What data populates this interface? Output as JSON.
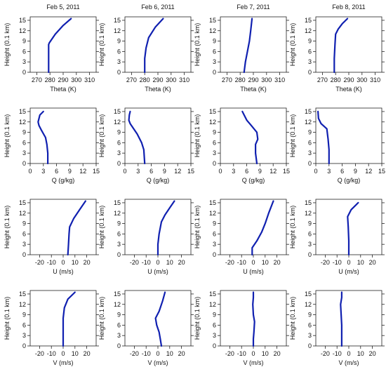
{
  "figure": {
    "column_titles": [
      "Feb 5, 2011",
      "Feb 6, 2011",
      "Feb 7, 2011",
      "Feb 8, 2011"
    ],
    "line_color": "#1020b0",
    "y_axis": {
      "label": "Height (0.1 km)",
      "range": [
        0,
        16
      ],
      "ticks": [
        0,
        3,
        6,
        9,
        12,
        15
      ]
    }
  },
  "chart_data": [
    {
      "type": "line",
      "variable": "Theta",
      "xlabel": "Theta (K)",
      "xlim": [
        265,
        315
      ],
      "xticks": [
        270,
        280,
        290,
        300,
        310
      ],
      "ylabel": "Height (0.1 km)",
      "ylim": [
        0,
        16
      ],
      "panels": [
        {
          "date": "Feb 5, 2011",
          "x": [
            279,
            279,
            279,
            279.5,
            284,
            290,
            296
          ],
          "y": [
            0,
            4,
            8,
            8.5,
            11,
            13.5,
            15.5
          ]
        },
        {
          "date": "Feb 6, 2011",
          "x": [
            280,
            280,
            281,
            283,
            288,
            294
          ],
          "y": [
            0,
            4,
            7,
            10,
            13,
            15.5
          ]
        },
        {
          "date": "Feb 7, 2011",
          "x": [
            283,
            284,
            286,
            287,
            288,
            289
          ],
          "y": [
            0,
            3,
            7,
            9,
            12,
            15.5
          ]
        },
        {
          "date": "Feb 8, 2011",
          "x": [
            279,
            279,
            279.5,
            280,
            282,
            285,
            289
          ],
          "y": [
            0,
            4,
            8,
            11,
            12.5,
            14,
            15.5
          ]
        }
      ]
    },
    {
      "type": "line",
      "variable": "Q",
      "xlabel": "Q (g/kg)",
      "xlim": [
        0,
        15
      ],
      "xticks": [
        0,
        3,
        6,
        9,
        12,
        15
      ],
      "ylabel": "Height (0.1 km)",
      "ylim": [
        0,
        16
      ],
      "panels": [
        {
          "date": "Feb 5, 2011",
          "x": [
            4,
            4,
            3.8,
            3.5,
            2.6,
            2,
            1.8,
            2.2,
            3
          ],
          "y": [
            0,
            3,
            5.5,
            7.5,
            9.5,
            11,
            12,
            14,
            15
          ]
        },
        {
          "date": "Feb 6, 2011",
          "x": [
            4.5,
            4.3,
            3.8,
            2.8,
            1.2,
            0.9,
            1,
            1.2
          ],
          "y": [
            0,
            4,
            6,
            8.5,
            11.5,
            12.5,
            14,
            15
          ]
        },
        {
          "date": "Feb 7, 2011",
          "x": [
            8.3,
            8,
            8,
            8.5,
            8.3,
            7,
            6,
            5
          ],
          "y": [
            0,
            3,
            5.5,
            7,
            9,
            11,
            12.5,
            15
          ]
        },
        {
          "date": "Feb 8, 2011",
          "x": [
            3,
            3,
            2.8,
            2.5,
            1.2,
            0.6,
            0.5
          ],
          "y": [
            0,
            4,
            7,
            10,
            11.5,
            13,
            15
          ]
        }
      ]
    },
    {
      "type": "line",
      "variable": "U",
      "xlabel": "U (m/s)",
      "xlim": [
        -28,
        28
      ],
      "xticks": [
        -20,
        -10,
        0,
        10,
        20
      ],
      "ylabel": "Height (0.1 km)",
      "ylim": [
        0,
        16
      ],
      "panels": [
        {
          "date": "Feb 5, 2011",
          "x": [
            4,
            4.5,
            5,
            5.5,
            9,
            14,
            19
          ],
          "y": [
            0,
            3,
            6,
            8,
            10.5,
            13,
            15.5
          ]
        },
        {
          "date": "Feb 6, 2011",
          "x": [
            0,
            0,
            1,
            3,
            6,
            10,
            14
          ],
          "y": [
            0,
            3,
            6,
            9.5,
            11.5,
            13.5,
            15.5
          ]
        },
        {
          "date": "Feb 7, 2011",
          "x": [
            -1,
            -1,
            3,
            7,
            10,
            13,
            17
          ],
          "y": [
            0,
            2,
            4,
            6.5,
            9,
            12,
            15.5
          ]
        },
        {
          "date": "Feb 8, 2011",
          "x": [
            0,
            0,
            -0.5,
            -1,
            2,
            8
          ],
          "y": [
            0,
            4,
            8,
            11,
            13,
            15
          ]
        }
      ]
    },
    {
      "type": "line",
      "variable": "V",
      "xlabel": "V (m/s)",
      "xlim": [
        -28,
        28
      ],
      "xticks": [
        -20,
        -10,
        0,
        10,
        20
      ],
      "ylabel": "Height (0.1 km)",
      "ylim": [
        0,
        16
      ],
      "panels": [
        {
          "date": "Feb 5, 2011",
          "x": [
            0,
            0,
            0,
            1,
            4,
            10
          ],
          "y": [
            0,
            4,
            8,
            11,
            13.5,
            15.5
          ]
        },
        {
          "date": "Feb 6, 2011",
          "x": [
            3,
            2,
            1,
            -1,
            -2,
            1,
            4,
            6
          ],
          "y": [
            0,
            2,
            4,
            6,
            8,
            10,
            13,
            15.5
          ]
        },
        {
          "date": "Feb 7, 2011",
          "x": [
            0,
            0,
            0.5,
            1,
            0,
            -0.5,
            0,
            0
          ],
          "y": [
            0,
            2,
            4,
            7,
            9,
            12,
            14,
            15.5
          ]
        },
        {
          "date": "Feb 8, 2011",
          "x": [
            -6,
            -6,
            -6,
            -6.5,
            -7,
            -6,
            -6
          ],
          "y": [
            0,
            3,
            6,
            9,
            12,
            14,
            15.5
          ]
        }
      ]
    }
  ]
}
